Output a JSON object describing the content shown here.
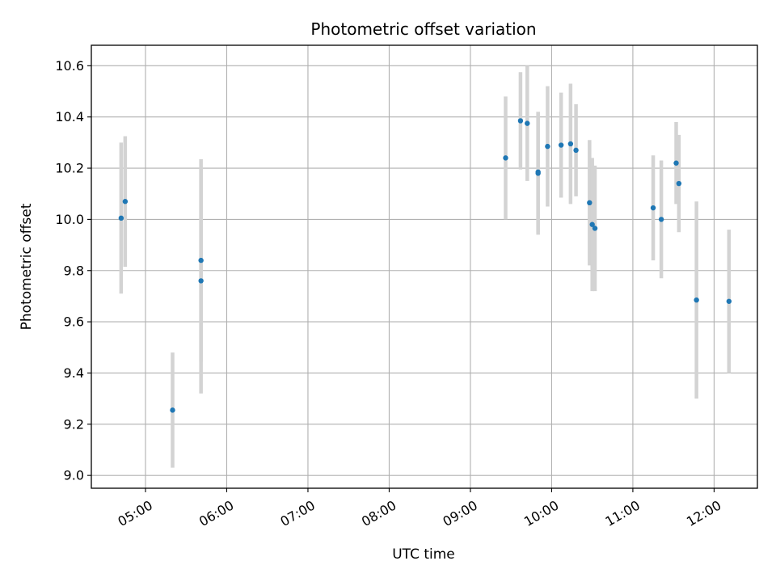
{
  "chart_data": {
    "type": "scatter",
    "title": "Photometric offset variation",
    "xlabel": "UTC time",
    "ylabel": "Photometric offset",
    "x_unit": "UTC hour",
    "xlim": [
      "04:20",
      "12:32"
    ],
    "ylim": [
      8.95,
      10.68
    ],
    "x_ticks": [
      "05:00",
      "06:00",
      "07:00",
      "08:00",
      "09:00",
      "10:00",
      "11:00",
      "12:00"
    ],
    "y_ticks": [
      "9.0",
      "9.2",
      "9.4",
      "9.6",
      "9.8",
      "10.0",
      "10.2",
      "10.4",
      "10.6"
    ],
    "grid": true,
    "marker_color": "#1f77b4",
    "errorbar_color": "#d3d3d3",
    "points": [
      {
        "x": "04:42",
        "y": 10.005,
        "err": 0.295
      },
      {
        "x": "04:45",
        "y": 10.07,
        "err": 0.255
      },
      {
        "x": "05:20",
        "y": 9.255,
        "err": 0.225
      },
      {
        "x": "05:41",
        "y": 9.84,
        "err": 0.395
      },
      {
        "x": "05:41",
        "y": 9.76,
        "err": 0.44
      },
      {
        "x": "09:26",
        "y": 10.24,
        "err": 0.24
      },
      {
        "x": "09:37",
        "y": 10.385,
        "err": 0.19
      },
      {
        "x": "09:42",
        "y": 10.375,
        "err": 0.225
      },
      {
        "x": "09:50",
        "y": 10.185,
        "err": 0.235
      },
      {
        "x": "09:50",
        "y": 10.18,
        "err": 0.24
      },
      {
        "x": "09:57",
        "y": 10.285,
        "err": 0.235
      },
      {
        "x": "10:07",
        "y": 10.29,
        "err": 0.205
      },
      {
        "x": "10:14",
        "y": 10.295,
        "err": 0.235
      },
      {
        "x": "10:18",
        "y": 10.27,
        "err": 0.18
      },
      {
        "x": "10:28",
        "y": 10.065,
        "err": 0.245
      },
      {
        "x": "10:30",
        "y": 9.98,
        "err": 0.26
      },
      {
        "x": "10:32",
        "y": 9.965,
        "err": 0.245
      },
      {
        "x": "11:15",
        "y": 10.045,
        "err": 0.205
      },
      {
        "x": "11:21",
        "y": 10.0,
        "err": 0.23
      },
      {
        "x": "11:32",
        "y": 10.22,
        "err": 0.16
      },
      {
        "x": "11:34",
        "y": 10.14,
        "err": 0.19
      },
      {
        "x": "11:47",
        "y": 9.685,
        "err": 0.385
      },
      {
        "x": "12:11",
        "y": 9.68,
        "err": 0.28
      }
    ]
  }
}
